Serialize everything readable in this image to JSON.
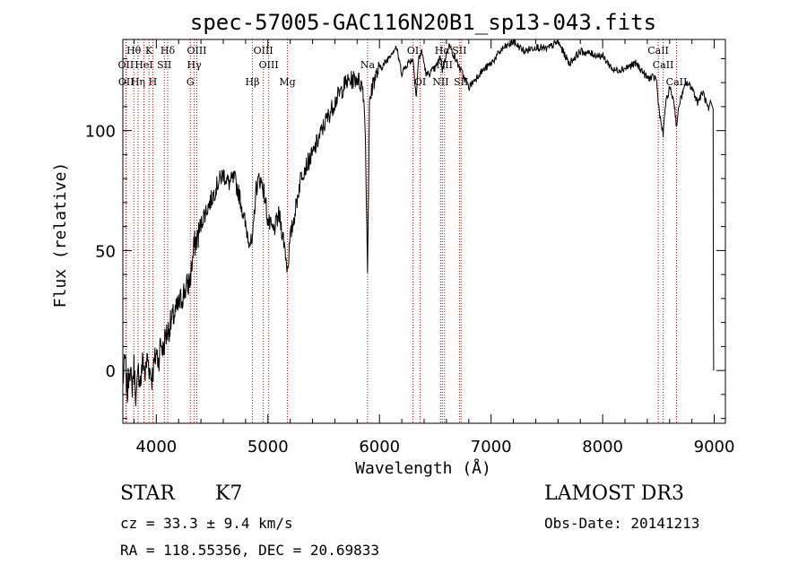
{
  "chart_data": {
    "type": "line",
    "title": "spec-57005-GAC116N20B1_sp13-043.fits",
    "xlabel": "Wavelength (Å)",
    "ylabel": "Flux (relative)",
    "xlim": [
      3700,
      9100
    ],
    "ylim": [
      -22,
      138
    ],
    "xticks": [
      4000,
      5000,
      6000,
      7000,
      8000,
      9000
    ],
    "yticks": [
      0,
      50,
      100
    ],
    "xtick_labels": [
      "4000",
      "5000",
      "6000",
      "7000",
      "8000",
      "9000"
    ],
    "ytick_labels": [
      "0",
      "50",
      "100"
    ],
    "spectrum": {
      "x": [
        3700,
        3720,
        3740,
        3760,
        3780,
        3800,
        3820,
        3840,
        3860,
        3880,
        3900,
        3920,
        3940,
        3960,
        3980,
        4000,
        4020,
        4040,
        4060,
        4080,
        4100,
        4150,
        4200,
        4250,
        4300,
        4340,
        4380,
        4420,
        4460,
        4500,
        4550,
        4600,
        4650,
        4700,
        4750,
        4800,
        4830,
        4861,
        4890,
        4920,
        4950,
        4980,
        5000,
        5050,
        5100,
        5150,
        5175,
        5200,
        5250,
        5300,
        5400,
        5500,
        5600,
        5700,
        5800,
        5850,
        5870,
        5893,
        5910,
        5940,
        6000,
        6050,
        6100,
        6150,
        6200,
        6250,
        6300,
        6330,
        6350,
        6380,
        6420,
        6500,
        6550,
        6563,
        6580,
        6620,
        6700,
        6800,
        6900,
        7000,
        7100,
        7200,
        7300,
        7400,
        7500,
        7600,
        7700,
        7800,
        7900,
        8000,
        8100,
        8200,
        8300,
        8400,
        8480,
        8498,
        8520,
        8542,
        8560,
        8600,
        8640,
        8662,
        8690,
        8750,
        8800,
        8850,
        8900,
        8950,
        8970,
        8990,
        8992,
        8995
      ],
      "y": [
        -5,
        5,
        -10,
        3,
        -8,
        2,
        -12,
        0,
        -5,
        5,
        -2,
        6,
        0,
        -3,
        2,
        8,
        4,
        12,
        8,
        14,
        16,
        22,
        27,
        33,
        37,
        52,
        57,
        64,
        68,
        72,
        78,
        82,
        78,
        80,
        72,
        60,
        55,
        52,
        75,
        80,
        78,
        70,
        62,
        58,
        65,
        52,
        42,
        55,
        68,
        82,
        90,
        102,
        112,
        120,
        122,
        118,
        106,
        42,
        110,
        120,
        126,
        128,
        132,
        135,
        124,
        128,
        130,
        114,
        130,
        133,
        123,
        126,
        131,
        125,
        128,
        136,
        128,
        118,
        124,
        128,
        134,
        137,
        133,
        135,
        134,
        137,
        128,
        133,
        132,
        131,
        125,
        126,
        128,
        122,
        122,
        112,
        104,
        98,
        110,
        118,
        112,
        102,
        112,
        120,
        118,
        112,
        116,
        108,
        112,
        109,
        25,
        0
      ]
    },
    "line_markers": [
      {
        "name": "Hθ",
        "wl": 3798,
        "row": 1
      },
      {
        "name": "OII",
        "wl": 3727,
        "row": 2
      },
      {
        "name": "OII",
        "wl": 3730,
        "row": 3
      },
      {
        "name": "Hη",
        "wl": 3836,
        "row": 3
      },
      {
        "name": "K",
        "wl": 3934,
        "row": 1
      },
      {
        "name": "HeI",
        "wl": 3889,
        "row": 2
      },
      {
        "name": "H",
        "wl": 3969,
        "row": 3
      },
      {
        "name": "SII",
        "wl": 4072,
        "row": 2
      },
      {
        "name": "Hδ",
        "wl": 4102,
        "row": 1
      },
      {
        "name": "OIII",
        "wl": 4363,
        "row": 1
      },
      {
        "name": "Hγ",
        "wl": 4340,
        "row": 2
      },
      {
        "name": "G",
        "wl": 4305,
        "row": 3
      },
      {
        "name": "OIII",
        "wl": 4959,
        "row": 1
      },
      {
        "name": "OIII",
        "wl": 5007,
        "row": 2
      },
      {
        "name": "Hβ",
        "wl": 4861,
        "row": 3
      },
      {
        "name": "Mg",
        "wl": 5175,
        "row": 3
      },
      {
        "name": "Na",
        "wl": 5893,
        "row": 2
      },
      {
        "name": "OI",
        "wl": 6300,
        "row": 1
      },
      {
        "name": "OI",
        "wl": 6364,
        "row": 3
      },
      {
        "name": "Hα",
        "wl": 6563,
        "row": 1
      },
      {
        "name": "NII",
        "wl": 6548,
        "row": 3
      },
      {
        "name": "NII",
        "wl": 6583,
        "row": 2
      },
      {
        "name": "SII",
        "wl": 6716,
        "row": 1
      },
      {
        "name": "SII",
        "wl": 6731,
        "row": 3
      },
      {
        "name": "CaII",
        "wl": 8498,
        "row": 1
      },
      {
        "name": "CaII",
        "wl": 8542,
        "row": 2
      },
      {
        "name": "CaII",
        "wl": 8662,
        "row": 3
      }
    ],
    "marker_color": "#cc0000"
  },
  "info": {
    "object_type": "STAR",
    "subclass": "K7",
    "cz": "cz = 33.3 ± 9.4 km/s",
    "coords": "RA = 118.55356, DEC =  20.69833",
    "survey": "LAMOST DR3",
    "obs_date": "Obs-Date: 20141213"
  }
}
